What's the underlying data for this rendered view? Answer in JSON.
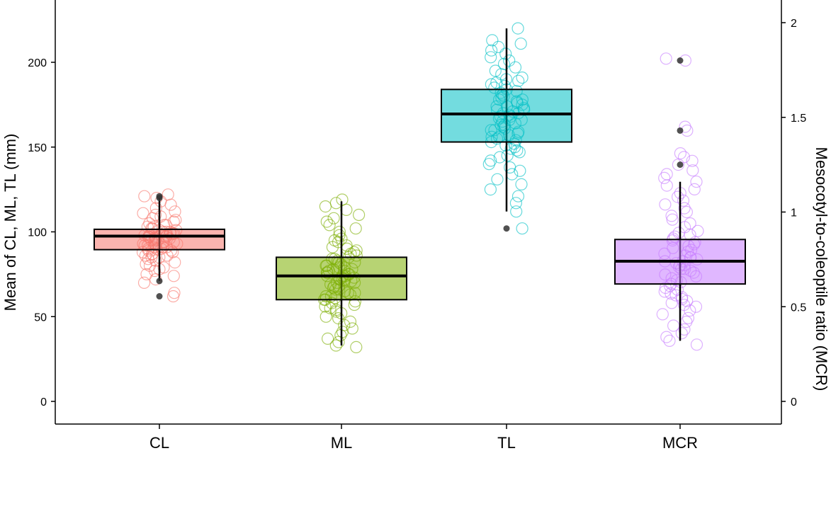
{
  "chart_data": {
    "type": "box",
    "categories": [
      "CL",
      "ML",
      "TL",
      "MCR"
    ],
    "ylabel": "Mean of CL, ML, TL (mm)",
    "ylabel_right": "Mesocotyl-to-coleoptile ratio (MCR)",
    "ylim": [
      -10,
      230
    ],
    "ylim_right": [
      -0.087,
      2.0
    ],
    "y_ticks": [
      0,
      50,
      100,
      150,
      200
    ],
    "y_ticks_right": [
      0,
      0.5,
      1,
      1.5,
      2
    ],
    "y_tick_labels": [
      "0",
      "50",
      "100",
      "150",
      "200"
    ],
    "y_tick_labels_right": [
      "0",
      "0.5",
      "1",
      "1.5",
      "2"
    ],
    "grid": false,
    "series": [
      {
        "category": "CL",
        "axis": "left",
        "color": "#F8766D",
        "q1": 89.5,
        "median": 97.5,
        "q3": 101.5,
        "whisker_low": 71,
        "whisker_high": 120,
        "outliers": [
          121,
          120,
          71,
          62
        ],
        "jitter": [
          62,
          64,
          70,
          72,
          74,
          75,
          77,
          78,
          79,
          80,
          81,
          82,
          83,
          84,
          85,
          85,
          86,
          86,
          87,
          87,
          88,
          88,
          89,
          89,
          90,
          90,
          90,
          91,
          91,
          91,
          92,
          92,
          92,
          93,
          93,
          93,
          94,
          94,
          94,
          95,
          95,
          95,
          96,
          96,
          96,
          97,
          97,
          97,
          97,
          98,
          98,
          98,
          99,
          99,
          99,
          100,
          100,
          100,
          101,
          101,
          102,
          102,
          103,
          103,
          104,
          104,
          105,
          106,
          107,
          108,
          109,
          110,
          111,
          112,
          114,
          116,
          118,
          120,
          121,
          122
        ]
      },
      {
        "category": "ML",
        "axis": "left",
        "color": "#7CAE00",
        "q1": 60,
        "median": 74,
        "q3": 85,
        "whisker_low": 33,
        "whisker_high": 118,
        "outliers": [],
        "jitter": [
          32,
          33,
          35,
          37,
          39,
          41,
          43,
          45,
          47,
          49,
          50,
          52,
          53,
          54,
          55,
          56,
          57,
          58,
          59,
          60,
          60,
          61,
          62,
          62,
          63,
          64,
          64,
          65,
          66,
          66,
          67,
          68,
          68,
          69,
          70,
          70,
          71,
          71,
          72,
          72,
          73,
          73,
          74,
          74,
          74,
          75,
          75,
          76,
          76,
          77,
          77,
          78,
          78,
          79,
          79,
          80,
          80,
          81,
          82,
          82,
          83,
          84,
          84,
          85,
          86,
          87,
          88,
          89,
          90,
          91,
          92,
          94,
          95,
          96,
          98,
          100,
          102,
          104,
          106,
          108,
          110,
          113,
          115,
          117,
          119
        ]
      },
      {
        "category": "TL",
        "axis": "left",
        "color": "#00BFC4",
        "q1": 153,
        "median": 169.5,
        "q3": 184,
        "whisker_low": 112,
        "whisker_high": 220,
        "outliers": [
          102
        ],
        "jitter": [
          102,
          112,
          117,
          121,
          125,
          128,
          131,
          134,
          136,
          138,
          140,
          142,
          144,
          145,
          147,
          148,
          149,
          150,
          151,
          152,
          153,
          154,
          155,
          156,
          156,
          157,
          158,
          159,
          160,
          160,
          161,
          162,
          163,
          163,
          164,
          165,
          166,
          166,
          167,
          168,
          168,
          169,
          170,
          170,
          171,
          172,
          172,
          173,
          174,
          174,
          175,
          176,
          177,
          178,
          178,
          179,
          180,
          181,
          182,
          183,
          184,
          185,
          186,
          187,
          188,
          189,
          190,
          191,
          193,
          195,
          197,
          199,
          201,
          203,
          205,
          207,
          209,
          211,
          213,
          220
        ]
      },
      {
        "category": "MCR",
        "axis": "right",
        "color": "#C77CFF",
        "q1": 0.62,
        "median": 0.74,
        "q3": 0.855,
        "whisker_low": 0.32,
        "whisker_high": 1.16,
        "outliers": [
          1.8,
          1.43,
          1.25
        ],
        "jitter": [
          0.3,
          0.32,
          0.34,
          0.36,
          0.38,
          0.4,
          0.42,
          0.44,
          0.46,
          0.48,
          0.5,
          0.51,
          0.52,
          0.53,
          0.54,
          0.55,
          0.56,
          0.57,
          0.58,
          0.59,
          0.6,
          0.61,
          0.62,
          0.63,
          0.64,
          0.65,
          0.66,
          0.67,
          0.68,
          0.69,
          0.7,
          0.7,
          0.71,
          0.72,
          0.72,
          0.73,
          0.74,
          0.74,
          0.75,
          0.76,
          0.76,
          0.77,
          0.78,
          0.79,
          0.8,
          0.81,
          0.82,
          0.83,
          0.84,
          0.85,
          0.86,
          0.87,
          0.88,
          0.89,
          0.9,
          0.92,
          0.94,
          0.96,
          0.98,
          1.0,
          1.02,
          1.04,
          1.06,
          1.08,
          1.1,
          1.12,
          1.14,
          1.16,
          1.18,
          1.2,
          1.22,
          1.25,
          1.27,
          1.29,
          1.31,
          1.43,
          1.45,
          1.8,
          1.81
        ]
      }
    ]
  }
}
